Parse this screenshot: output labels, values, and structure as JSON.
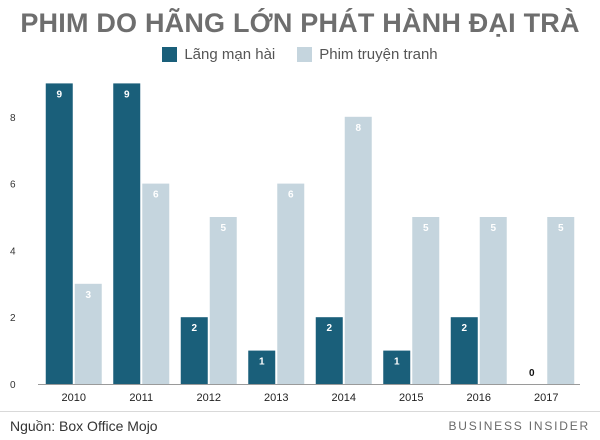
{
  "header": {
    "title": "PHIM DO HÃNG LỚN PHÁT HÀNH ĐẠI TRÀ"
  },
  "legend": {
    "items": [
      {
        "label": "Lãng mạn hài",
        "color": "#1a5f7a"
      },
      {
        "label": "Phim truyện tranh",
        "color": "#c5d5de"
      }
    ]
  },
  "footer": {
    "source": "Nguồn: Box Office Mojo",
    "brand": "BUSINESS INSIDER"
  },
  "chart_data": {
    "type": "bar",
    "title": "PHIM DO HÃNG LỚN PHÁT HÀNH ĐẠI TRÀ",
    "categories": [
      "2010",
      "2011",
      "2012",
      "2013",
      "2014",
      "2015",
      "2016",
      "2017"
    ],
    "series": [
      {
        "name": "Lãng mạn hài",
        "color": "#1a5f7a",
        "values": [
          9,
          9,
          2,
          1,
          2,
          1,
          2,
          0
        ]
      },
      {
        "name": "Phim truyện tranh",
        "color": "#c5d5de",
        "values": [
          3,
          6,
          5,
          6,
          8,
          5,
          5,
          5
        ]
      }
    ],
    "y_ticks": [
      0,
      2,
      4,
      6,
      8
    ],
    "ylim": [
      0,
      9
    ],
    "xlabel": "",
    "ylabel": "",
    "grid": false,
    "legend_position": "top-center"
  }
}
